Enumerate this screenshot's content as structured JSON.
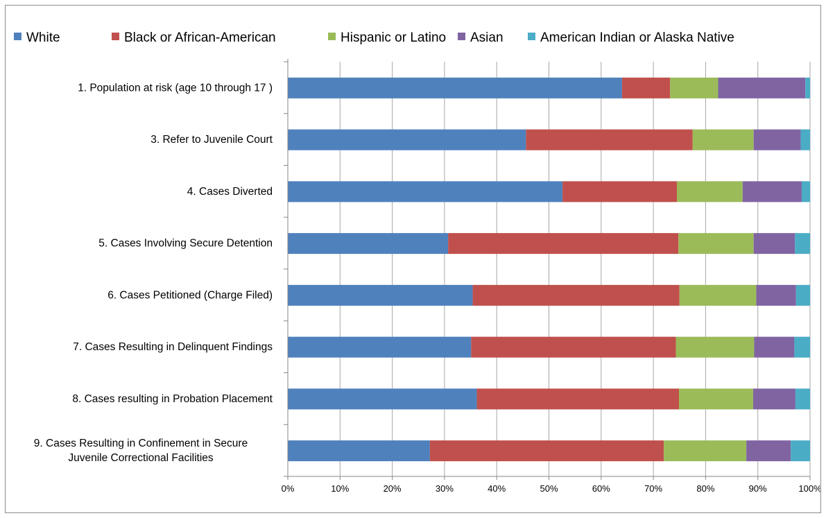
{
  "chart_data": {
    "type": "bar",
    "orientation": "horizontal",
    "stacked": "percent",
    "title": "",
    "xlabel": "",
    "ylabel": "",
    "xlim": [
      0,
      100
    ],
    "x_ticks": [
      "0%",
      "10%",
      "20%",
      "30%",
      "40%",
      "50%",
      "60%",
      "70%",
      "80%",
      "90%",
      "100%"
    ],
    "grid": "vertical",
    "legend_position": "top",
    "categories": [
      "1. Population at risk (age 10 through 17 )",
      "3. Refer to Juvenile Court",
      "4. Cases Diverted",
      "5. Cases Involving Secure Detention",
      "6. Cases Petitioned (Charge Filed)",
      "7. Cases Resulting in Delinquent Findings",
      "8. Cases resulting in Probation Placement",
      "9. Cases Resulting in Confinement in Secure Juvenile Correctional Facilities"
    ],
    "category_lines": [
      [
        "1. Population at risk (age 10 through 17 )"
      ],
      [
        "3. Refer to Juvenile Court"
      ],
      [
        "4. Cases Diverted"
      ],
      [
        "5. Cases Involving Secure Detention"
      ],
      [
        "6. Cases Petitioned (Charge Filed)"
      ],
      [
        "7. Cases Resulting in Delinquent Findings"
      ],
      [
        "8. Cases resulting in Probation Placement"
      ],
      [
        "9. Cases Resulting in Confinement in Secure",
        "Juvenile Correctional Facilities"
      ]
    ],
    "series": [
      {
        "name": "White",
        "color": "#4f81bd",
        "values": [
          64.0,
          45.6,
          52.6,
          30.7,
          35.4,
          35.1,
          36.2,
          27.2
        ]
      },
      {
        "name": "Black or African-American",
        "color": "#c0504d",
        "values": [
          9.2,
          31.9,
          21.9,
          44.1,
          39.6,
          39.2,
          38.7,
          44.8
        ]
      },
      {
        "name": "Hispanic or Latino",
        "color": "#9bbb59",
        "values": [
          9.2,
          11.7,
          12.6,
          14.4,
          14.7,
          15.0,
          14.2,
          15.8
        ]
      },
      {
        "name": "Asian",
        "color": "#8064a2",
        "values": [
          16.7,
          9.0,
          11.3,
          7.9,
          7.6,
          7.7,
          8.1,
          8.5
        ]
      },
      {
        "name": "American Indian or Alaska Native",
        "color": "#4bacc6",
        "values": [
          0.9,
          1.8,
          1.6,
          2.9,
          2.7,
          3.0,
          2.8,
          3.7
        ]
      }
    ]
  }
}
